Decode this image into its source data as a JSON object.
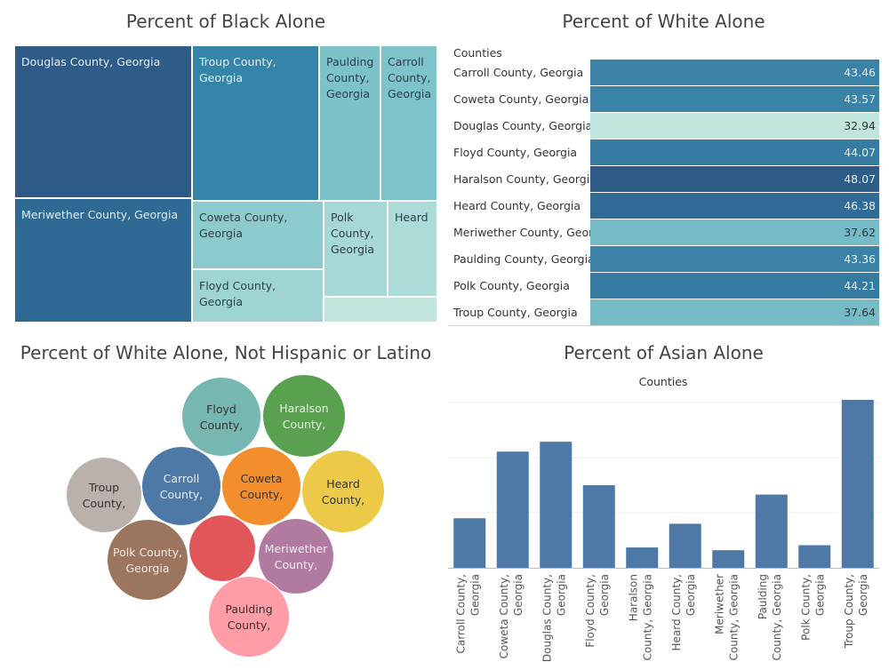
{
  "titles": {
    "black": "Percent of Black Alone",
    "white": "Percent of White Alone",
    "white_nh": "Percent of White Alone, Not Hispanic or Latino",
    "asian": "Percent of Asian Alone"
  },
  "chart_data": [
    {
      "type": "treemap",
      "title": "Percent of Black Alone",
      "cells": [
        {
          "label": "Douglas County, Georgia",
          "color": "#2e5b88"
        },
        {
          "label": "Meriwether County, Georgia",
          "color": "#2f6a94"
        },
        {
          "label": "Troup County, Georgia",
          "color": "#3585a8"
        },
        {
          "label": "Paulding County, Georgia",
          "color": "#7dc1c9"
        },
        {
          "label": "Carroll County, Georgia",
          "color": "#7fc3ca"
        },
        {
          "label": "Coweta County, Georgia",
          "color": "#8ccacd"
        },
        {
          "label": "Floyd County, Georgia",
          "color": "#9ed4d2"
        },
        {
          "label": "Polk County, Georgia",
          "color": "#a6d9d5"
        },
        {
          "label": "Heard",
          "color": "#abdcd7"
        },
        {
          "label": "",
          "color": "#bfe5dd"
        }
      ]
    },
    {
      "type": "table",
      "title": "Percent of White Alone",
      "column_header": "Counties",
      "rows": [
        {
          "label": "Carroll County, Georgia",
          "value": "43.46",
          "color": "#3a82a6"
        },
        {
          "label": "Coweta County, Georgia",
          "value": "43.57",
          "color": "#3a82a6"
        },
        {
          "label": "Douglas County, Georgia",
          "value": "32.94",
          "color": "#bfe5dd"
        },
        {
          "label": "Floyd County, Georgia",
          "value": "44.07",
          "color": "#367ba1"
        },
        {
          "label": "Haralson County, Georgia",
          "value": "48.07",
          "color": "#2e5b88"
        },
        {
          "label": "Heard County, Georgia",
          "value": "46.38",
          "color": "#306b96"
        },
        {
          "label": "Meriwether County, Geor..",
          "value": "37.62",
          "color": "#76bcc7"
        },
        {
          "label": "Paulding County, Georgia",
          "value": "43.36",
          "color": "#3a82a6"
        },
        {
          "label": "Polk County, Georgia",
          "value": "44.21",
          "color": "#357aa0"
        },
        {
          "label": "Troup County, Georgia",
          "value": "37.64",
          "color": "#76bcc7"
        }
      ]
    },
    {
      "type": "bubble",
      "title": "Percent of White Alone, Not Hispanic or Latino",
      "bubbles": [
        {
          "lines": [
            "Floyd",
            "County,"
          ],
          "color": "#76b7b2",
          "text": "#333333"
        },
        {
          "lines": [
            "Haralson",
            "County,"
          ],
          "color": "#59a14f",
          "text": "#e8f2e6"
        },
        {
          "lines": [
            "Troup",
            "County,"
          ],
          "color": "#bab0ac",
          "text": "#333333"
        },
        {
          "lines": [
            "Carroll",
            "County,"
          ],
          "color": "#4e79a7",
          "text": "#e6edf5"
        },
        {
          "lines": [
            "Coweta",
            "County,"
          ],
          "color": "#f28e2b",
          "text": "#333333"
        },
        {
          "lines": [
            "Heard",
            "County,"
          ],
          "color": "#edc948",
          "text": "#333333"
        },
        {
          "lines": [
            "Polk County,",
            "Georgia"
          ],
          "color": "#9c755f",
          "text": "#f2ebe6"
        },
        {
          "lines": [],
          "color": "#e15759",
          "text": "#333333"
        },
        {
          "lines": [
            "Meriwether",
            "County,"
          ],
          "color": "#b07aa1",
          "text": "#f5eef3"
        },
        {
          "lines": [
            "Paulding",
            "County,"
          ],
          "color": "#ff9da7",
          "text": "#333333"
        }
      ]
    },
    {
      "type": "bar",
      "title": "Percent of Asian Alone",
      "header": "Counties",
      "bar_color": "#4e79a7",
      "categories": [
        [
          "Carroll County,",
          "Georgia"
        ],
        [
          "Coweta County,",
          "Georgia"
        ],
        [
          "Douglas County,",
          "Georgia"
        ],
        [
          "Floyd County,",
          "Georgia"
        ],
        [
          "Haralson",
          "County, Georgia"
        ],
        [
          "Heard County,",
          "Georgia"
        ],
        [
          "Meriwether",
          "County, Georgia"
        ],
        [
          "Paulding",
          "County, Georgia"
        ],
        [
          "Polk County,",
          "Georgia"
        ],
        [
          "Troup County,",
          "Georgia"
        ]
      ],
      "values": [
        0.9,
        2.11,
        2.29,
        1.5,
        0.37,
        0.8,
        0.32,
        1.33,
        0.41,
        3.05
      ],
      "ylim": [
        0,
        3.05
      ],
      "grid": true
    }
  ]
}
